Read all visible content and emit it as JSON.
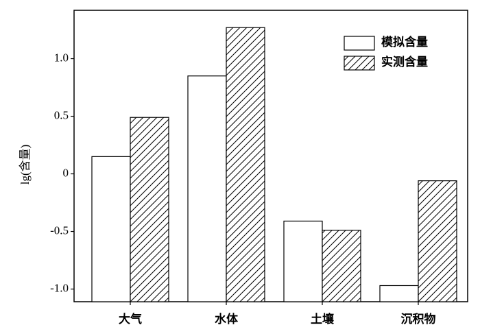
{
  "chart_data": {
    "type": "bar",
    "y_label": "lg(含量)",
    "categories": [
      "大气",
      "水体",
      "土壤",
      "沉积物"
    ],
    "series": [
      {
        "name": "模拟含量",
        "color": "#ffffff",
        "hatch": false,
        "values": [
          0.15,
          0.85,
          -0.41,
          -0.97
        ]
      },
      {
        "name": "实测含量",
        "color": "#ffffff",
        "hatch": true,
        "values": [
          0.49,
          1.27,
          -0.49,
          -0.06
        ]
      }
    ],
    "ylim": [
      -1.11,
      1.42
    ],
    "yticks": [
      {
        "value": 1,
        "label": "1.0"
      },
      0.5,
      0,
      -0.5,
      {
        "value": -1,
        "label": "-1.0"
      }
    ],
    "legend": "upper right"
  }
}
